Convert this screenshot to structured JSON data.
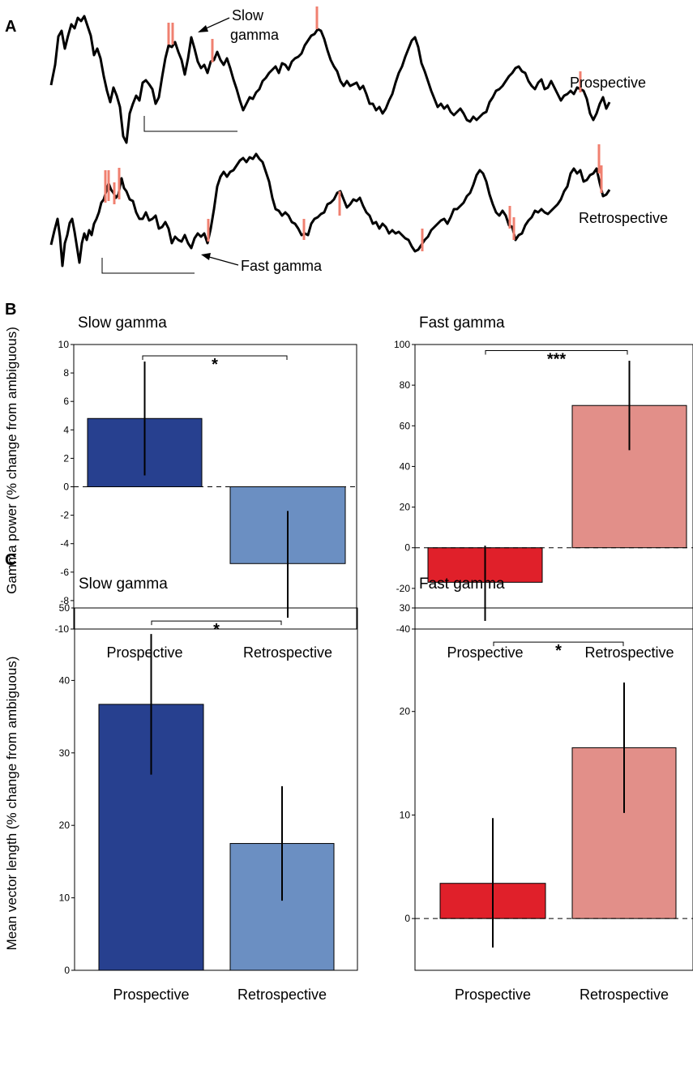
{
  "panel_labels": {
    "a": "A",
    "b": "B",
    "c": "C"
  },
  "traces": {
    "prospective_label": "Prospective",
    "retrospective_label": "Retrospective",
    "slow_gamma_annotation": [
      "Slow",
      "gamma"
    ],
    "fast_gamma_annotation": "Fast gamma",
    "trace_color": "#000000",
    "spike_color": "#f08070"
  },
  "chart_data": [
    {
      "id": "b-slow",
      "type": "bar",
      "title": "Slow gamma",
      "ylabel": "Gamma power (% change from ambiguous)",
      "categories": [
        "Prospective",
        "Retrospective"
      ],
      "values": [
        4.8,
        -5.4
      ],
      "errors": [
        [
          0.8,
          8.8
        ],
        [
          -9.2,
          -1.7
        ]
      ],
      "colors": [
        "#27408f",
        "#6b8fc2"
      ],
      "ylim": [
        -10,
        10
      ],
      "yticks": [
        -10,
        -8,
        -6,
        -4,
        -2,
        0,
        2,
        4,
        6,
        8,
        10
      ],
      "yticklabels": [
        "-10",
        "-8",
        "-6",
        "-4",
        "-2",
        "0",
        "2",
        "4",
        "6",
        "8",
        "10"
      ],
      "significance": "*",
      "sig_level": 9.2,
      "zero_line": "dashed"
    },
    {
      "id": "b-fast",
      "type": "bar",
      "title": "Fast gamma",
      "categories": [
        "Prospective",
        "Retrospective"
      ],
      "values": [
        -17,
        70
      ],
      "errors": [
        [
          -36,
          1
        ],
        [
          48,
          92
        ]
      ],
      "colors": [
        "#e0202a",
        "#e28f89"
      ],
      "ylim": [
        -40,
        100
      ],
      "yticks": [
        -40,
        -20,
        0,
        20,
        40,
        60,
        80,
        100
      ],
      "yticklabels": [
        "-40",
        "-20",
        "0",
        "20",
        "40",
        "60",
        "80",
        "100"
      ],
      "significance": "***",
      "sig_level": 97,
      "zero_line": "dashed"
    },
    {
      "id": "c-slow",
      "type": "bar",
      "title": "Slow gamma",
      "ylabel": "Mean vector length (% change from ambiguous)",
      "categories": [
        "Prospective",
        "Retrospective"
      ],
      "values": [
        36.7,
        17.5
      ],
      "errors": [
        [
          27,
          46.4
        ],
        [
          9.6,
          25.4
        ]
      ],
      "colors": [
        "#27408f",
        "#6b8fc2"
      ],
      "ylim": [
        0,
        50
      ],
      "yticks": [
        0,
        10,
        20,
        30,
        40,
        50
      ],
      "yticklabels": [
        "0",
        "10",
        "20",
        "30",
        "40",
        "50"
      ],
      "significance": "*",
      "sig_level": 48.2,
      "zero_line": "none"
    },
    {
      "id": "c-fast",
      "type": "bar",
      "title": "Fast gamma",
      "categories": [
        "Prospective",
        "Retrospective"
      ],
      "values": [
        3.4,
        16.5
      ],
      "errors": [
        [
          -2.8,
          9.7
        ],
        [
          10.2,
          22.8
        ]
      ],
      "colors": [
        "#e0202a",
        "#e28f89"
      ],
      "ylim": [
        -5,
        30
      ],
      "yticks": [
        0,
        10,
        20,
        30
      ],
      "yticklabels": [
        "0",
        "10",
        "20",
        "30"
      ],
      "significance": "*",
      "sig_level": 26.7,
      "zero_line": "dashed"
    }
  ]
}
